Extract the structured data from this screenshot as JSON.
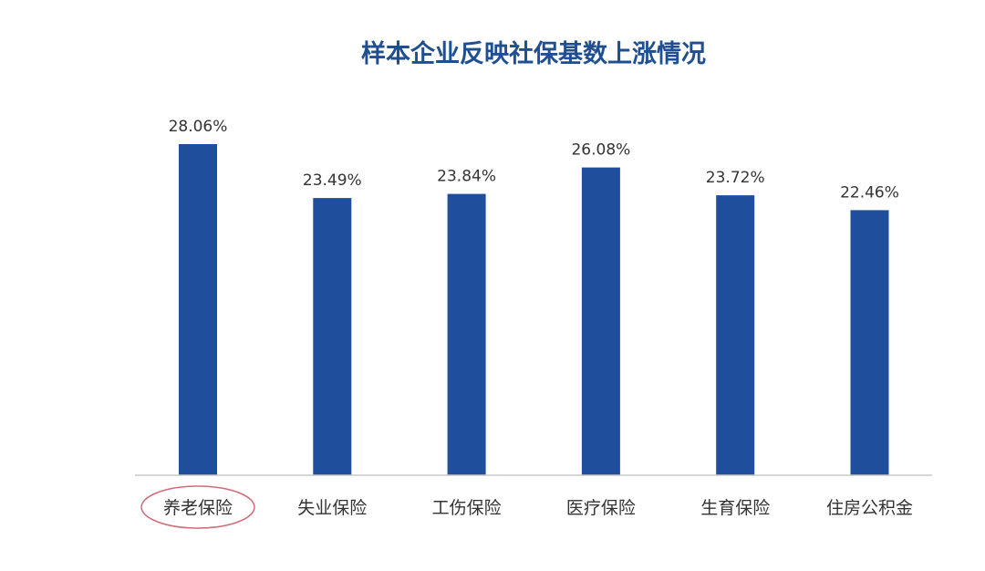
{
  "chart_data": {
    "type": "bar",
    "title": "样本企业反映社保基数上涨情况",
    "categories": [
      "养老保险",
      "失业保险",
      "工伤保险",
      "医疗保险",
      "生育保险",
      "住房公积金"
    ],
    "values": [
      28.06,
      23.49,
      23.84,
      26.08,
      23.72,
      22.46
    ],
    "value_labels": [
      "28.06%",
      "23.49%",
      "23.84%",
      "26.08%",
      "23.72%",
      "22.46%"
    ],
    "ylim": [
      0,
      28.06
    ],
    "grid": false,
    "legend": "none",
    "highlighted_category": "养老保险"
  },
  "colors": {
    "bar": "#1f4f9c",
    "title": "#1f4f91",
    "axis": "#c8c8c8",
    "highlight_ellipse": "#d06a78",
    "text": "#333333"
  }
}
